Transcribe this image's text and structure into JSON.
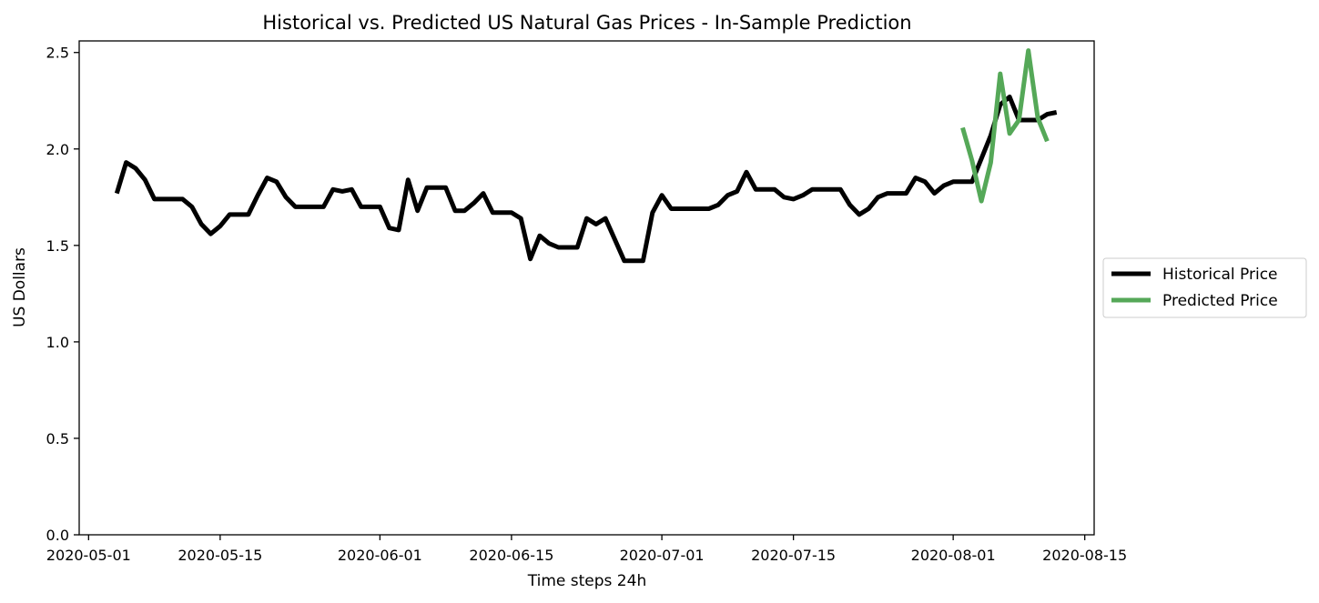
{
  "chart_data": {
    "type": "line",
    "title": "Historical vs. Predicted US Natural Gas Prices - In-Sample Prediction",
    "xlabel": "Time steps 24h",
    "ylabel": "US Dollars",
    "xlim": [
      "2020-04-30",
      "2020-08-16"
    ],
    "ylim": [
      0,
      2.56
    ],
    "x_ticks": [
      "2020-05-01",
      "2020-05-15",
      "2020-06-01",
      "2020-06-15",
      "2020-07-01",
      "2020-07-15",
      "2020-08-01",
      "2020-08-15"
    ],
    "y_ticks": [
      "0.0",
      "0.5",
      "1.0",
      "1.5",
      "2.0",
      "2.5"
    ],
    "grid": false,
    "legend_position": "outside right",
    "series": [
      {
        "name": "Historical Price",
        "color": "#000000",
        "points": [
          [
            "2020-05-04",
            1.77
          ],
          [
            "2020-05-05",
            1.93
          ],
          [
            "2020-05-06",
            1.9
          ],
          [
            "2020-05-07",
            1.84
          ],
          [
            "2020-05-08",
            1.74
          ],
          [
            "2020-05-11",
            1.74
          ],
          [
            "2020-05-12",
            1.7
          ],
          [
            "2020-05-13",
            1.61
          ],
          [
            "2020-05-14",
            1.56
          ],
          [
            "2020-05-15",
            1.6
          ],
          [
            "2020-05-16",
            1.66
          ],
          [
            "2020-05-18",
            1.66
          ],
          [
            "2020-05-19",
            1.76
          ],
          [
            "2020-05-20",
            1.85
          ],
          [
            "2020-05-21",
            1.83
          ],
          [
            "2020-05-22",
            1.75
          ],
          [
            "2020-05-23",
            1.7
          ],
          [
            "2020-05-26",
            1.7
          ],
          [
            "2020-05-27",
            1.79
          ],
          [
            "2020-05-28",
            1.78
          ],
          [
            "2020-05-29",
            1.79
          ],
          [
            "2020-05-30",
            1.7
          ],
          [
            "2020-06-01",
            1.7
          ],
          [
            "2020-06-02",
            1.59
          ],
          [
            "2020-06-03",
            1.58
          ],
          [
            "2020-06-04",
            1.84
          ],
          [
            "2020-06-05",
            1.68
          ],
          [
            "2020-06-06",
            1.8
          ],
          [
            "2020-06-08",
            1.8
          ],
          [
            "2020-06-09",
            1.68
          ],
          [
            "2020-06-10",
            1.68
          ],
          [
            "2020-06-11",
            1.72
          ],
          [
            "2020-06-12",
            1.77
          ],
          [
            "2020-06-13",
            1.67
          ],
          [
            "2020-06-15",
            1.67
          ],
          [
            "2020-06-16",
            1.64
          ],
          [
            "2020-06-17",
            1.43
          ],
          [
            "2020-06-18",
            1.55
          ],
          [
            "2020-06-19",
            1.51
          ],
          [
            "2020-06-20",
            1.49
          ],
          [
            "2020-06-22",
            1.49
          ],
          [
            "2020-06-23",
            1.64
          ],
          [
            "2020-06-24",
            1.61
          ],
          [
            "2020-06-25",
            1.64
          ],
          [
            "2020-06-26",
            1.53
          ],
          [
            "2020-06-27",
            1.42
          ],
          [
            "2020-06-29",
            1.42
          ],
          [
            "2020-06-30",
            1.67
          ],
          [
            "2020-07-01",
            1.76
          ],
          [
            "2020-07-02",
            1.69
          ],
          [
            "2020-07-06",
            1.69
          ],
          [
            "2020-07-07",
            1.71
          ],
          [
            "2020-07-08",
            1.76
          ],
          [
            "2020-07-09",
            1.78
          ],
          [
            "2020-07-10",
            1.88
          ],
          [
            "2020-07-11",
            1.79
          ],
          [
            "2020-07-13",
            1.79
          ],
          [
            "2020-07-14",
            1.75
          ],
          [
            "2020-07-15",
            1.74
          ],
          [
            "2020-07-16",
            1.76
          ],
          [
            "2020-07-17",
            1.79
          ],
          [
            "2020-07-20",
            1.79
          ],
          [
            "2020-07-21",
            1.71
          ],
          [
            "2020-07-22",
            1.66
          ],
          [
            "2020-07-23",
            1.69
          ],
          [
            "2020-07-24",
            1.75
          ],
          [
            "2020-07-25",
            1.77
          ],
          [
            "2020-07-27",
            1.77
          ],
          [
            "2020-07-28",
            1.85
          ],
          [
            "2020-07-29",
            1.83
          ],
          [
            "2020-07-30",
            1.77
          ],
          [
            "2020-07-31",
            1.81
          ],
          [
            "2020-08-01",
            1.83
          ],
          [
            "2020-08-03",
            1.83
          ],
          [
            "2020-08-04",
            1.95
          ],
          [
            "2020-08-05",
            2.07
          ],
          [
            "2020-08-06",
            2.23
          ],
          [
            "2020-08-07",
            2.27
          ],
          [
            "2020-08-08",
            2.15
          ],
          [
            "2020-08-10",
            2.15
          ],
          [
            "2020-08-11",
            2.18
          ],
          [
            "2020-08-12",
            2.19
          ]
        ]
      },
      {
        "name": "Predicted Price",
        "color": "#55a858",
        "points": [
          [
            "2020-08-02",
            2.11
          ],
          [
            "2020-08-03",
            1.94
          ],
          [
            "2020-08-04",
            1.73
          ],
          [
            "2020-08-05",
            1.93
          ],
          [
            "2020-08-06",
            2.39
          ],
          [
            "2020-08-07",
            2.08
          ],
          [
            "2020-08-08",
            2.15
          ],
          [
            "2020-08-09",
            2.51
          ],
          [
            "2020-08-10",
            2.16
          ],
          [
            "2020-08-11",
            2.04
          ]
        ]
      }
    ]
  }
}
